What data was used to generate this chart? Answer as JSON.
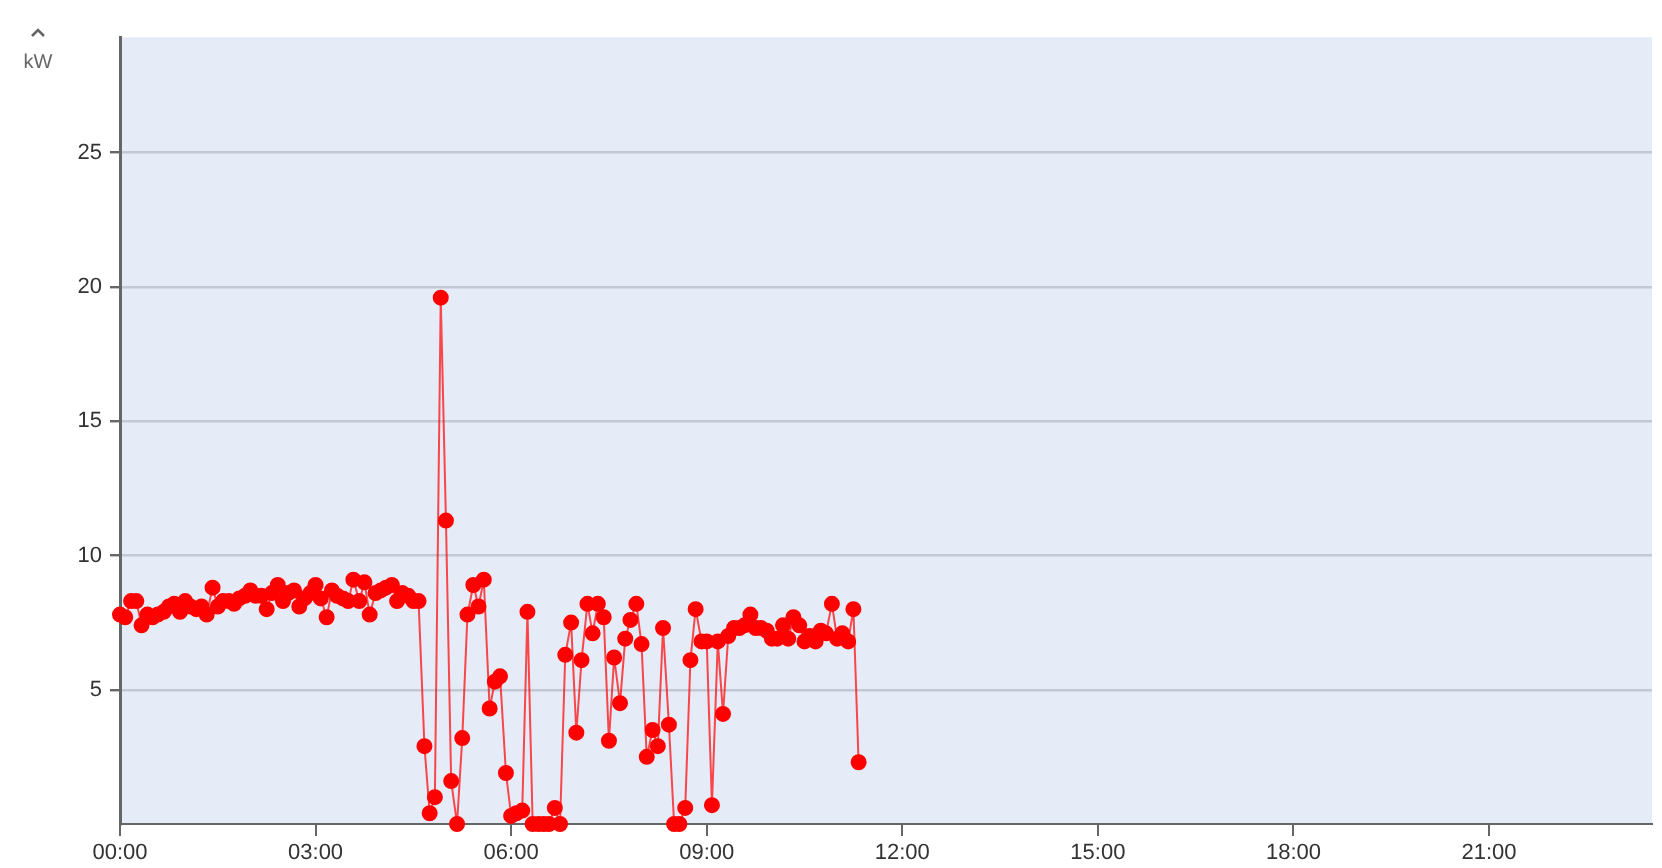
{
  "chart_data": {
    "type": "line",
    "ylabel": "kW",
    "x": [
      0,
      0.08,
      0.17,
      0.25,
      0.33,
      0.42,
      0.5,
      0.58,
      0.67,
      0.75,
      0.83,
      0.92,
      1,
      1.08,
      1.17,
      1.25,
      1.33,
      1.42,
      1.5,
      1.58,
      1.67,
      1.75,
      1.83,
      1.92,
      2,
      2.08,
      2.17,
      2.25,
      2.33,
      2.42,
      2.5,
      2.58,
      2.67,
      2.75,
      2.83,
      2.92,
      3,
      3.08,
      3.17,
      3.25,
      3.33,
      3.42,
      3.5,
      3.58,
      3.67,
      3.75,
      3.83,
      3.92,
      4,
      4.08,
      4.17,
      4.25,
      4.33,
      4.42,
      4.5,
      4.58,
      4.67,
      4.75,
      4.83,
      4.92,
      5,
      5.08,
      5.17,
      5.25,
      5.33,
      5.42,
      5.5,
      5.58,
      5.67,
      5.75,
      5.83,
      5.92,
      6,
      6.08,
      6.17,
      6.25,
      6.33,
      6.42,
      6.5,
      6.58,
      6.67,
      6.75,
      6.83,
      6.92,
      7,
      7.08,
      7.17,
      7.25,
      7.33,
      7.42,
      7.5,
      7.58,
      7.67,
      7.75,
      7.83,
      7.92,
      8,
      8.08,
      8.17,
      8.25,
      8.33,
      8.42,
      8.5,
      8.58,
      8.67,
      8.75,
      8.83,
      8.92,
      9,
      9.08,
      9.17,
      9.25,
      9.33,
      9.42,
      9.5,
      9.58,
      9.67,
      9.75,
      9.83,
      9.92,
      10,
      10.08,
      10.17,
      10.25,
      10.33,
      10.42,
      10.5,
      10.58,
      10.67,
      10.75,
      10.83,
      10.92,
      11,
      11.08,
      11.17,
      11.25,
      11.33
    ],
    "series": [
      {
        "color": "#ff0000",
        "values": [
          7.8,
          7.7,
          8.3,
          8.3,
          7.4,
          7.8,
          7.7,
          7.8,
          7.9,
          8.1,
          8.2,
          7.9,
          8.3,
          8.1,
          8.0,
          8.1,
          7.8,
          8.8,
          8.1,
          8.3,
          8.3,
          8.2,
          8.4,
          8.5,
          8.7,
          8.5,
          8.5,
          8.0,
          8.6,
          8.9,
          8.3,
          8.6,
          8.7,
          8.1,
          8.4,
          8.6,
          8.9,
          8.4,
          7.7,
          8.7,
          8.5,
          8.4,
          8.3,
          9.1,
          8.3,
          9.0,
          7.8,
          8.6,
          8.7,
          8.8,
          8.9,
          8.3,
          8.6,
          8.5,
          8.3,
          8.3,
          2.9,
          0.4,
          1.0,
          19.6,
          11.3,
          1.6,
          0,
          3.2,
          7.8,
          8.9,
          8.1,
          9.1,
          4.3,
          5.3,
          5.5,
          1.9,
          0.3,
          0.4,
          0.5,
          7.9,
          0,
          0,
          0,
          0,
          0.6,
          0,
          6.3,
          7.5,
          3.4,
          6.1,
          8.2,
          7.1,
          8.2,
          7.7,
          3.1,
          6.2,
          4.5,
          6.9,
          7.6,
          8.2,
          6.7,
          2.5,
          3.5,
          2.9,
          7.3,
          3.7,
          0,
          0,
          0.6,
          6.1,
          8.0,
          6.8,
          6.8,
          0.7,
          6.8,
          4.1,
          7.0,
          7.3,
          7.3,
          7.4,
          7.8,
          7.3,
          7.3,
          7.2,
          6.9,
          6.9,
          7.4,
          6.9,
          7.7,
          7.4,
          6.8,
          7.0,
          6.8,
          7.2,
          7.1,
          8.2,
          6.9,
          7.1,
          6.8,
          8.0,
          2.3
        ]
      }
    ],
    "xlim": [
      0,
      23.5
    ],
    "xticks": [
      {
        "value": 0,
        "label": "00:00"
      },
      {
        "value": 3,
        "label": "03:00"
      },
      {
        "value": 6,
        "label": "06:00"
      },
      {
        "value": 9,
        "label": "09:00"
      },
      {
        "value": 12,
        "label": "12:00"
      },
      {
        "value": 15,
        "label": "15:00"
      },
      {
        "value": 18,
        "label": "18:00"
      },
      {
        "value": 21,
        "label": "21:00"
      }
    ],
    "ylim": [
      0,
      29.3
    ],
    "yticks": [
      5,
      10,
      15,
      20,
      25
    ],
    "grid": "y",
    "legend": false,
    "marker": "circle",
    "line_style": "solid"
  }
}
